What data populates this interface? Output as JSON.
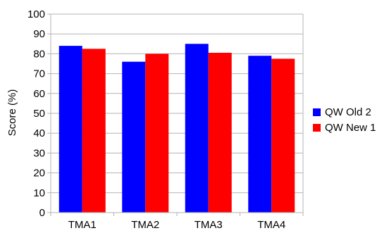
{
  "chart_data": {
    "type": "bar",
    "categories": [
      "TMA1",
      "TMA2",
      "TMA3",
      "TMA4"
    ],
    "series": [
      {
        "name": "QW Old 2",
        "values": [
          84,
          76,
          85,
          79
        ],
        "color": "#0000ff"
      },
      {
        "name": "QW New 1",
        "values": [
          82.5,
          80,
          80.5,
          77.5
        ],
        "color": "#ff0000"
      }
    ],
    "xlabel": "",
    "ylabel": "Score (%)",
    "ylim": [
      0,
      100
    ],
    "yticks": [
      0,
      10,
      20,
      30,
      40,
      50,
      60,
      70,
      80,
      90,
      100
    ],
    "grid": true,
    "legend_position": "right"
  }
}
